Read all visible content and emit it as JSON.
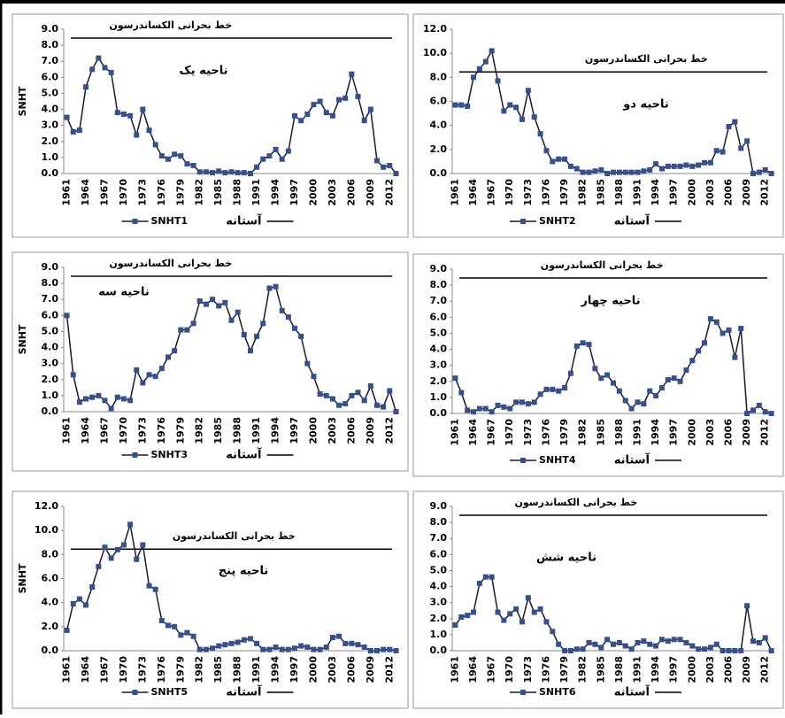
{
  "chart_data": [
    {
      "type": "line",
      "title": "ناحیه یک",
      "threshold_label": "خط بحرانی الکساندرسون",
      "y_label": "SNHT",
      "categories": [
        "1961",
        null,
        null,
        "1964",
        null,
        null,
        "1967",
        null,
        null,
        "1970",
        null,
        null,
        "1973",
        null,
        null,
        "1976",
        null,
        null,
        "1979",
        null,
        null,
        "1982",
        null,
        null,
        "1985",
        null,
        null,
        "1988",
        null,
        null,
        "1991",
        null,
        null,
        "1994",
        null,
        null,
        "1997",
        null,
        null,
        "2000",
        null,
        null,
        "2003",
        null,
        null,
        "2006",
        null,
        null,
        "2009",
        null,
        null,
        "2012",
        null
      ],
      "series": [
        {
          "name": "SNHT1",
          "color": "#34508f",
          "values": [
            3.5,
            2.6,
            2.7,
            5.4,
            6.5,
            7.2,
            6.6,
            6.3,
            3.8,
            3.7,
            3.6,
            2.4,
            4.0,
            2.7,
            1.8,
            1.1,
            0.9,
            1.2,
            1.1,
            0.6,
            0.5,
            0.1,
            0.1,
            0.05,
            0.15,
            0.05,
            0.1,
            0.05,
            0.05,
            0.0,
            0.4,
            0.9,
            1.1,
            1.5,
            0.9,
            1.4,
            3.6,
            3.3,
            3.7,
            4.3,
            4.5,
            3.8,
            3.6,
            4.6,
            4.7,
            6.2,
            4.8,
            3.3,
            4.0,
            0.8,
            0.4,
            0.5,
            0.0
          ]
        }
      ],
      "threshold": {
        "name": "آستانه",
        "value": 8.45,
        "color": "#000000"
      },
      "ylim": [
        0,
        9
      ],
      "yticks": [
        {
          "value": 0,
          "label": "0.0"
        },
        {
          "value": 1,
          "label": "1.0"
        },
        {
          "value": 2,
          "label": "2.0"
        },
        {
          "value": 3,
          "label": "3.0"
        },
        {
          "value": 4,
          "label": "4.0"
        },
        {
          "value": 5,
          "label": "5.0"
        },
        {
          "value": 6,
          "label": "6.0"
        },
        {
          "value": 7,
          "label": "7.0"
        },
        {
          "value": 8,
          "label": "8.0"
        },
        {
          "value": 9,
          "label": "9.0"
        }
      ]
    },
    {
      "type": "line",
      "title": "ناحیه دو",
      "threshold_label": "خط بحرانی الکساندرسون",
      "categories": [
        "1961",
        null,
        null,
        "1964",
        null,
        null,
        "1967",
        null,
        null,
        "1970",
        null,
        null,
        "1973",
        null,
        null,
        "1976",
        null,
        null,
        "1979",
        null,
        null,
        "1982",
        null,
        null,
        "1985",
        null,
        null,
        "1988",
        null,
        null,
        "1991",
        null,
        null,
        "1994",
        null,
        null,
        "1997",
        null,
        null,
        "2000",
        null,
        null,
        "2003",
        null,
        null,
        "2006",
        null,
        null,
        "2009",
        null,
        null,
        "2012",
        null
      ],
      "series": [
        {
          "name": "SNHT2",
          "color": "#34508f",
          "values": [
            5.7,
            5.7,
            5.6,
            8.0,
            8.7,
            9.3,
            10.2,
            7.7,
            5.2,
            5.7,
            5.5,
            4.5,
            6.9,
            4.7,
            3.3,
            1.9,
            1.0,
            1.2,
            1.2,
            0.6,
            0.4,
            0.1,
            0.1,
            0.2,
            0.3,
            0.0,
            0.1,
            0.1,
            0.1,
            0.1,
            0.1,
            0.2,
            0.3,
            0.8,
            0.4,
            0.6,
            0.6,
            0.6,
            0.7,
            0.6,
            0.7,
            0.9,
            0.9,
            1.9,
            1.8,
            3.9,
            4.3,
            2.1,
            2.7,
            0.0,
            0.1,
            0.3,
            0.0
          ]
        }
      ],
      "threshold": {
        "name": "آستانه",
        "value": 8.45,
        "color": "#000000"
      },
      "ylim": [
        0,
        12
      ],
      "yticks": [
        {
          "value": 0,
          "label": "0.0"
        },
        {
          "value": 2,
          "label": "2.0"
        },
        {
          "value": 4,
          "label": "4.0"
        },
        {
          "value": 6,
          "label": "6.0"
        },
        {
          "value": 8,
          "label": "8.0"
        },
        {
          "value": 10,
          "label": "10.0"
        },
        {
          "value": 12,
          "label": "12.0"
        }
      ]
    },
    {
      "type": "line",
      "title": "ناحیه سه",
      "threshold_label": "خط بحرانی الکساندرسون",
      "y_label": "SNHT",
      "categories": [
        "1961",
        null,
        null,
        "1964",
        null,
        null,
        "1967",
        null,
        null,
        "1970",
        null,
        null,
        "1973",
        null,
        null,
        "1976",
        null,
        null,
        "1979",
        null,
        null,
        "1982",
        null,
        null,
        "1985",
        null,
        null,
        "1988",
        null,
        null,
        "1991",
        null,
        null,
        "1994",
        null,
        null,
        "1997",
        null,
        null,
        "2000",
        null,
        null,
        "2003",
        null,
        null,
        "2006",
        null,
        null,
        "2009",
        null,
        null,
        "2012",
        null
      ],
      "series": [
        {
          "name": "SNHT3",
          "color": "#34508f",
          "values": [
            6.0,
            2.3,
            0.6,
            0.8,
            0.9,
            1.0,
            0.7,
            0.2,
            0.9,
            0.8,
            0.7,
            2.6,
            1.8,
            2.3,
            2.2,
            2.7,
            3.4,
            3.8,
            5.1,
            5.1,
            5.5,
            6.9,
            6.7,
            7.0,
            6.6,
            6.8,
            5.7,
            6.2,
            4.8,
            3.8,
            4.7,
            5.5,
            7.7,
            7.8,
            6.3,
            5.9,
            5.2,
            4.7,
            3.0,
            2.2,
            1.1,
            1.0,
            0.8,
            0.4,
            0.5,
            1.0,
            1.2,
            0.7,
            1.6,
            0.4,
            0.3,
            1.3,
            0.0
          ]
        }
      ],
      "threshold": {
        "name": "آستانه",
        "value": 8.45,
        "color": "#000000"
      },
      "ylim": [
        0,
        9
      ],
      "yticks": [
        {
          "value": 0,
          "label": "0.0"
        },
        {
          "value": 1,
          "label": "1.0"
        },
        {
          "value": 2,
          "label": "2.0"
        },
        {
          "value": 3,
          "label": "3.0"
        },
        {
          "value": 4,
          "label": "4.0"
        },
        {
          "value": 5,
          "label": "5.0"
        },
        {
          "value": 6,
          "label": "6.0"
        },
        {
          "value": 7,
          "label": "7.0"
        },
        {
          "value": 8,
          "label": "8.0"
        },
        {
          "value": 9,
          "label": "9.0"
        }
      ]
    },
    {
      "type": "line",
      "title": "ناحیه چهار",
      "threshold_label": "خط بحرانی الکساندرسون",
      "categories": [
        "1961",
        null,
        null,
        "1964",
        null,
        null,
        "1967",
        null,
        null,
        "1970",
        null,
        null,
        "1973",
        null,
        null,
        "1976",
        null,
        null,
        "1979",
        null,
        null,
        "1982",
        null,
        null,
        "1985",
        null,
        null,
        "1988",
        null,
        null,
        "1991",
        null,
        null,
        "1994",
        null,
        null,
        "1997",
        null,
        null,
        "2000",
        null,
        null,
        "2003",
        null,
        null,
        "2006",
        null,
        null,
        "2009",
        null,
        null,
        "2012",
        null
      ],
      "series": [
        {
          "name": "SNHT4",
          "color": "#34508f",
          "values": [
            2.2,
            1.3,
            0.2,
            0.1,
            0.3,
            0.3,
            0.1,
            0.5,
            0.4,
            0.3,
            0.7,
            0.7,
            0.6,
            0.7,
            1.2,
            1.5,
            1.5,
            1.4,
            1.6,
            2.5,
            4.2,
            4.4,
            4.3,
            2.8,
            2.2,
            2.4,
            1.9,
            1.4,
            0.8,
            0.3,
            0.7,
            0.6,
            1.4,
            1.1,
            1.6,
            2.1,
            2.2,
            2.0,
            2.7,
            3.3,
            3.9,
            4.4,
            5.9,
            5.7,
            5.0,
            5.2,
            3.5,
            5.3,
            0.0,
            0.2,
            0.5,
            0.1,
            0.0
          ]
        }
      ],
      "threshold": {
        "name": "آستانه",
        "value": 8.45,
        "color": "#000000"
      },
      "ylim": [
        0,
        9
      ],
      "yticks": [
        {
          "value": 0,
          "label": "0.0"
        },
        {
          "value": 1,
          "label": "1.0"
        },
        {
          "value": 2,
          "label": "2.0"
        },
        {
          "value": 3,
          "label": "3.0"
        },
        {
          "value": 4,
          "label": "4.0"
        },
        {
          "value": 5,
          "label": "5.0"
        },
        {
          "value": 6,
          "label": "6.0"
        },
        {
          "value": 7,
          "label": "7.0"
        },
        {
          "value": 8,
          "label": "8.0"
        },
        {
          "value": 9,
          "label": "9.0"
        }
      ]
    },
    {
      "type": "line",
      "title": "ناحیه پنج",
      "threshold_label": "خط بحرانی الکساندرسون",
      "y_label": "SNHT",
      "categories": [
        "1961",
        null,
        null,
        "1964",
        null,
        null,
        "1967",
        null,
        null,
        "1970",
        null,
        null,
        "1973",
        null,
        null,
        "1976",
        null,
        null,
        "1979",
        null,
        null,
        "1982",
        null,
        null,
        "1985",
        null,
        null,
        "1988",
        null,
        null,
        "1991",
        null,
        null,
        "1994",
        null,
        null,
        "1997",
        null,
        null,
        "2000",
        null,
        null,
        "2003",
        null,
        null,
        "2006",
        null,
        null,
        "2009",
        null,
        null,
        "2012",
        null
      ],
      "series": [
        {
          "name": "SNHT5",
          "color": "#34508f",
          "values": [
            1.7,
            3.9,
            4.3,
            3.8,
            5.3,
            7.0,
            8.6,
            7.7,
            8.4,
            8.8,
            10.5,
            7.6,
            8.8,
            5.4,
            5.1,
            2.5,
            2.1,
            2.0,
            1.3,
            1.5,
            1.2,
            0.1,
            0.1,
            0.2,
            0.4,
            0.5,
            0.6,
            0.7,
            0.9,
            1.0,
            0.6,
            0.1,
            0.1,
            0.3,
            0.1,
            0.1,
            0.2,
            0.4,
            0.3,
            0.1,
            0.1,
            0.3,
            1.1,
            1.2,
            0.6,
            0.6,
            0.5,
            0.3,
            0.0,
            0.0,
            0.1,
            0.1,
            0.0
          ]
        }
      ],
      "threshold": {
        "name": "آستانه",
        "value": 8.45,
        "color": "#000000"
      },
      "ylim": [
        0,
        12
      ],
      "yticks": [
        {
          "value": 0,
          "label": "0.0"
        },
        {
          "value": 2,
          "label": "2.0"
        },
        {
          "value": 4,
          "label": "4.0"
        },
        {
          "value": 6,
          "label": "6.0"
        },
        {
          "value": 8,
          "label": "8.0"
        },
        {
          "value": 10,
          "label": "10.0"
        },
        {
          "value": 12,
          "label": "12.0"
        }
      ]
    },
    {
      "type": "line",
      "title": "ناحیه شش",
      "threshold_label": "خط بحرانی الکساندرسون",
      "categories": [
        "1961",
        null,
        null,
        "1964",
        null,
        null,
        "1967",
        null,
        null,
        "1970",
        null,
        null,
        "1973",
        null,
        null,
        "1976",
        null,
        null,
        "1979",
        null,
        null,
        "1982",
        null,
        null,
        "1985",
        null,
        null,
        "1988",
        null,
        null,
        "1991",
        null,
        null,
        "1994",
        null,
        null,
        "1997",
        null,
        null,
        "2000",
        null,
        null,
        "2003",
        null,
        null,
        "2006",
        null,
        null,
        "2009",
        null,
        null,
        "2012",
        null
      ],
      "series": [
        {
          "name": "SNHT6",
          "color": "#34508f",
          "values": [
            1.6,
            2.1,
            2.2,
            2.4,
            4.2,
            4.6,
            4.6,
            2.4,
            1.9,
            2.3,
            2.6,
            1.8,
            3.3,
            2.4,
            2.6,
            1.8,
            1.2,
            0.4,
            0.0,
            0.0,
            0.1,
            0.1,
            0.5,
            0.4,
            0.2,
            0.7,
            0.4,
            0.5,
            0.3,
            0.1,
            0.5,
            0.6,
            0.4,
            0.3,
            0.7,
            0.6,
            0.7,
            0.7,
            0.5,
            0.3,
            0.1,
            0.1,
            0.2,
            0.4,
            0.0,
            0.0,
            0.0,
            0.0,
            2.8,
            0.6,
            0.5,
            0.8,
            0.0
          ]
        }
      ],
      "threshold": {
        "name": "آستانه",
        "value": 8.45,
        "color": "#000000"
      },
      "ylim": [
        0,
        9
      ],
      "yticks": [
        {
          "value": 0,
          "label": "0.0"
        },
        {
          "value": 1,
          "label": "1.0"
        },
        {
          "value": 2,
          "label": "2.0"
        },
        {
          "value": 3,
          "label": "3.0"
        },
        {
          "value": 4,
          "label": "4.0"
        },
        {
          "value": 5,
          "label": "5.0"
        },
        {
          "value": 6,
          "label": "6.0"
        },
        {
          "value": 7,
          "label": "7.0"
        },
        {
          "value": 8,
          "label": "8.0"
        },
        {
          "value": 9,
          "label": "9.0"
        }
      ]
    }
  ]
}
